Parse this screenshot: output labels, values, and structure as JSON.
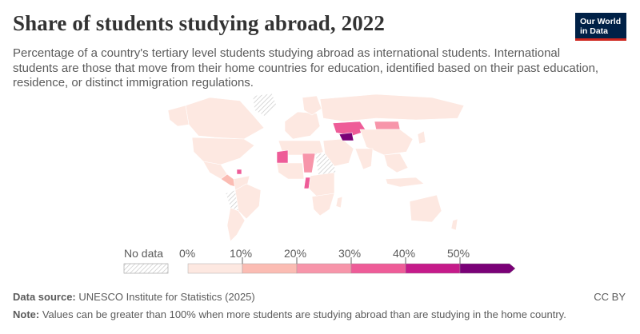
{
  "header": {
    "title": "Share of students studying abroad, 2022",
    "subtitle": "Percentage of a country's tertiary level students studying abroad as international students. International students are those that move from their home countries for education, identified based on their past education, residence, or distinct immigration regulations.",
    "logo_line1": "Our World",
    "logo_line2": "in Data"
  },
  "legend": {
    "no_data_label": "No data",
    "ticks": [
      "0%",
      "10%",
      "20%",
      "30%",
      "40%",
      "50%"
    ],
    "bin_colors": [
      "#fde8e1",
      "#fbbcb3",
      "#f795aa",
      "#ee5c98",
      "#c51b8a",
      "#7a0177"
    ],
    "no_data_color": "#e4e4e4"
  },
  "footer": {
    "source_label": "Data source:",
    "source_text": "UNESCO Institute for Statistics (2025)",
    "note_label": "Note:",
    "note_text": "Values can be greater than 100% when more students are studying abroad than are studying in the home country.",
    "license": "CC BY"
  },
  "map": {
    "highlighted_regions": [
      {
        "name": "Turkmenistan",
        "bin": 5
      },
      {
        "name": "Kazakhstan",
        "bin": 3
      },
      {
        "name": "Mauritania",
        "bin": 3
      },
      {
        "name": "Niger",
        "bin": 2
      },
      {
        "name": "Congo",
        "bin": 3
      },
      {
        "name": "Guyana",
        "bin": 3
      }
    ]
  }
}
